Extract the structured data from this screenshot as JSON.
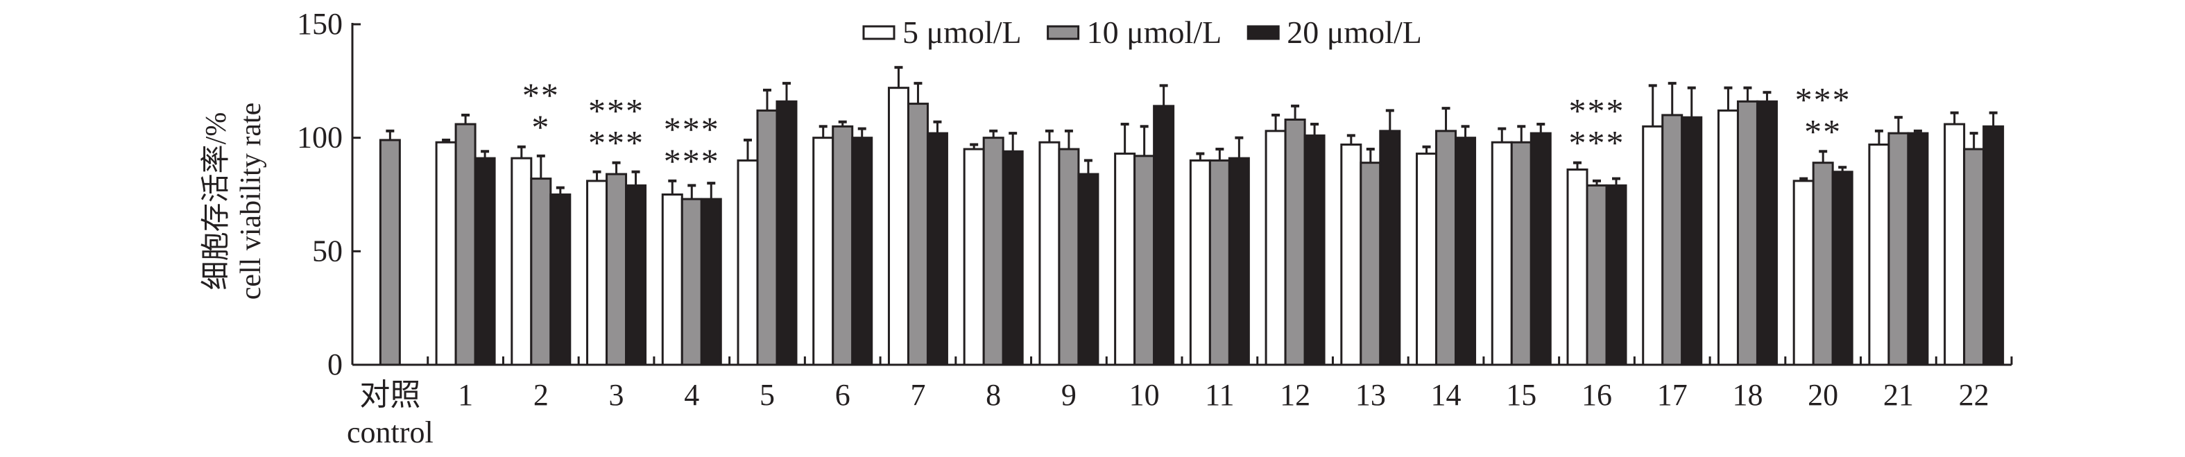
{
  "chart_data": {
    "type": "bar",
    "title": "",
    "ylabel_cn": "细胞存活率/%",
    "ylabel": "cell viability rate",
    "xlabel": "",
    "ylim": [
      0,
      150
    ],
    "yticks": [
      0,
      50,
      100,
      150
    ],
    "legend_position": "top",
    "categories": [
      "对照",
      "1",
      "2",
      "3",
      "4",
      "5",
      "6",
      "7",
      "8",
      "9",
      "10",
      "11",
      "12",
      "13",
      "14",
      "15",
      "16",
      "17",
      "18",
      "20",
      "21",
      "22"
    ],
    "category_sub_label": "control",
    "colors": {
      "5": "#ffffff",
      "10": "#939192",
      "20": "#231f20",
      "stroke": "#231f20"
    },
    "series": [
      {
        "name": "5 μmol/L",
        "values": [
          null,
          98,
          91,
          81,
          75,
          90,
          100,
          122,
          95,
          98,
          93,
          90,
          103,
          97,
          93,
          98,
          86,
          105,
          112,
          81,
          97,
          106
        ],
        "errors": [
          null,
          1,
          5,
          4,
          6,
          9,
          5,
          9,
          2,
          5,
          13,
          3,
          7,
          4,
          3,
          6,
          3,
          18,
          10,
          1,
          6,
          5
        ]
      },
      {
        "name": "10 μmol/L",
        "values": [
          99,
          106,
          82,
          84,
          73,
          112,
          105,
          115,
          100,
          95,
          92,
          90,
          108,
          89,
          103,
          98,
          79,
          110,
          116,
          89,
          102,
          95
        ],
        "errors": [
          4,
          4,
          10,
          5,
          6,
          9,
          2,
          9,
          3,
          8,
          13,
          5,
          6,
          6,
          10,
          7,
          2,
          14,
          6,
          5,
          7,
          7
        ]
      },
      {
        "name": "20 μmol/L",
        "values": [
          null,
          91,
          75,
          79,
          73,
          116,
          100,
          102,
          94,
          84,
          114,
          91,
          101,
          103,
          100,
          102,
          79,
          109,
          116,
          85,
          102,
          105
        ],
        "errors": [
          null,
          3,
          3,
          6,
          7,
          8,
          4,
          5,
          8,
          6,
          9,
          9,
          5,
          9,
          5,
          4,
          3,
          13,
          4,
          2,
          1,
          6
        ]
      }
    ],
    "annotations": [
      {
        "category": "2",
        "lines": [
          "**",
          "*"
        ]
      },
      {
        "category": "3",
        "lines": [
          "***",
          "***"
        ]
      },
      {
        "category": "4",
        "lines": [
          "***",
          "***"
        ]
      },
      {
        "category": "16",
        "lines": [
          "***",
          "***"
        ]
      },
      {
        "category": "20",
        "lines": [
          "***",
          "**"
        ]
      }
    ]
  }
}
